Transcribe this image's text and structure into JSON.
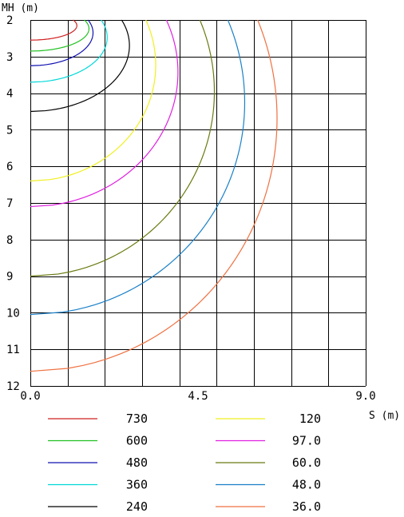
{
  "chart_data": {
    "type": "line",
    "title": "",
    "xlabel": "S (m)",
    "ylabel": "MH (m)",
    "xlim": [
      0,
      9
    ],
    "ylim": [
      2,
      12
    ],
    "y_inverted": true,
    "x_ticks": [
      "0.0",
      "4.5",
      "9.0"
    ],
    "y_ticks": [
      "2",
      "3",
      "4",
      "5",
      "6",
      "7",
      "8",
      "9",
      "10",
      "11",
      "12"
    ],
    "grid": true,
    "legend_position": "bottom",
    "series": [
      {
        "name": "730",
        "color": "#d02020",
        "x0": 1.15,
        "y0": 2.0,
        "mh_at_s0": 2.55
      },
      {
        "name": "600",
        "color": "#20c020",
        "x0": 1.45,
        "y0": 2.0,
        "mh_at_s0": 2.85
      },
      {
        "name": "480",
        "color": "#1010b0",
        "x0": 1.55,
        "y0": 2.0,
        "mh_at_s0": 3.25
      },
      {
        "name": "360",
        "color": "#00d8d8",
        "x0": 1.9,
        "y0": 2.0,
        "mh_at_s0": 3.7
      },
      {
        "name": "240",
        "color": "#000000",
        "x0": 2.45,
        "y0": 2.0,
        "mh_at_s0": 4.5
      },
      {
        "name": "120",
        "color": "#f0f020",
        "x0": 3.1,
        "y0": 2.0,
        "mh_at_s0": 6.4
      },
      {
        "name": "97.0",
        "color": "#e020e0",
        "x0": 3.65,
        "y0": 2.0,
        "mh_at_s0": 7.1
      },
      {
        "name": "60.0",
        "color": "#6a7a10",
        "x0": 4.55,
        "y0": 2.0,
        "mh_at_s0": 9.0
      },
      {
        "name": "48.0",
        "color": "#1a80c8",
        "x0": 5.3,
        "y0": 2.0,
        "mh_at_s0": 10.05
      },
      {
        "name": "36.0",
        "color": "#f07040",
        "x0": 6.1,
        "y0": 2.0,
        "mh_at_s0": 11.6
      }
    ],
    "legend_left": [
      "730",
      "600",
      "480",
      "360",
      "240"
    ],
    "legend_right": [
      "120",
      "97.0",
      "60.0",
      "48.0",
      "36.0"
    ]
  }
}
